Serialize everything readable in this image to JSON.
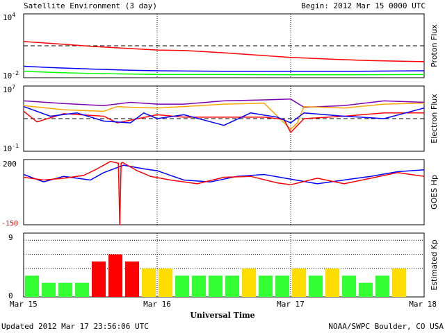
{
  "header": {
    "title": "Satellite Environment (3 day)",
    "begin": "Begin:  2012 Mar 15 0000 UTC"
  },
  "footer": {
    "updated": "Updated 2012 Mar 17 23:56:06 UTC",
    "credit": "NOAA/SWPC Boulder, CO USA"
  },
  "x_axis": {
    "label": "Universal Time",
    "ticks": [
      "Mar 15",
      "Mar 16",
      "Mar 17",
      "Mar 18"
    ],
    "range_days": [
      0,
      3
    ]
  },
  "colors": {
    "red": "#ff0000",
    "blue": "#0000ff",
    "green": "#00ff00",
    "orange": "#ffa500",
    "purple": "#7a00b0",
    "kp_low": "#33ff33",
    "kp_mid": "#ffdd00",
    "kp_high": "#ff0000"
  },
  "chart_data": [
    {
      "type": "line",
      "ylabel": "Proton Flux",
      "y_scale": "log",
      "ylim": [
        0.01,
        10000
      ],
      "y_tick_labels": {
        "top_base": "10",
        "top_exp": "4",
        "bottom_base": "10",
        "bottom_exp": "-2"
      },
      "threshold": 10,
      "series": [
        {
          "color": "#ff0000",
          "x": [
            0,
            0.2,
            0.5,
            0.8,
            1.0,
            1.2,
            1.5,
            1.8,
            2.0,
            2.3,
            2.6,
            3.0
          ],
          "y": [
            25,
            17,
            9,
            5.5,
            4,
            3.6,
            2.2,
            1.2,
            0.8,
            0.55,
            0.4,
            0.32
          ]
        },
        {
          "color": "#0000ff",
          "x": [
            0,
            0.2,
            0.5,
            0.8,
            1.0,
            1.5,
            2.0,
            2.5,
            3.0
          ],
          "y": [
            0.12,
            0.09,
            0.065,
            0.05,
            0.045,
            0.04,
            0.04,
            0.04,
            0.045
          ]
        },
        {
          "color": "#00ff00",
          "x": [
            0,
            0.2,
            0.5,
            0.8,
            1.0,
            1.5,
            2.0,
            2.5,
            3.0
          ],
          "y": [
            0.04,
            0.032,
            0.025,
            0.022,
            0.02,
            0.02,
            0.019,
            0.019,
            0.02
          ]
        }
      ]
    },
    {
      "type": "line",
      "ylabel": "Electron Flux",
      "y_scale": "log",
      "ylim": [
        0.1,
        10000000
      ],
      "y_tick_labels": {
        "top_base": "10",
        "top_exp": "7",
        "bottom_base": "10",
        "bottom_exp": "-1"
      },
      "threshold": 1000,
      "series": [
        {
          "color": "#7a00b0",
          "x": [
            0,
            0.3,
            0.6,
            0.8,
            1.0,
            1.2,
            1.5,
            1.8,
            2.0,
            2.1,
            2.4,
            2.7,
            3.0
          ],
          "y": [
            150000,
            70000,
            40000,
            100000,
            60000,
            60000,
            150000,
            200000,
            250000,
            25000,
            40000,
            150000,
            100000
          ]
        },
        {
          "color": "#ffa500",
          "x": [
            0,
            0.3,
            0.6,
            0.7,
            0.8,
            1.0,
            1.2,
            1.5,
            1.8,
            2.0,
            2.05,
            2.1,
            2.4,
            2.7,
            3.0
          ],
          "y": [
            40000,
            12000,
            8000,
            30000,
            25000,
            20000,
            30000,
            60000,
            80000,
            50,
            300,
            30000,
            20000,
            60000,
            80000
          ]
        },
        {
          "color": "#ff0000",
          "x": [
            0,
            0.1,
            0.3,
            0.6,
            0.7,
            1.0,
            1.2,
            1.5,
            1.8,
            1.95,
            2.0,
            2.1,
            2.4,
            2.7,
            3.0
          ],
          "y": [
            8000,
            400,
            4000,
            2000,
            300,
            3000,
            1500,
            1500,
            1500,
            800,
            20,
            1000,
            2000,
            5000,
            5000
          ]
        },
        {
          "color": "#0000ff",
          "x": [
            0,
            0.2,
            0.4,
            0.6,
            0.8,
            0.9,
            1.0,
            1.2,
            1.5,
            1.7,
            1.9,
            2.0,
            2.1,
            2.4,
            2.7,
            3.0
          ],
          "y": [
            30000,
            2000,
            5000,
            500,
            300,
            5000,
            1000,
            3000,
            150,
            5000,
            1500,
            300,
            5000,
            2000,
            1000,
            20000
          ]
        }
      ]
    },
    {
      "type": "line",
      "ylabel": "GOES Hp",
      "ylim": [
        -150,
        200
      ],
      "y_tick_labels": {
        "top": "200",
        "bottom": "-150"
      },
      "series": [
        {
          "color": "#0000ff",
          "x": [
            0,
            0.15,
            0.3,
            0.5,
            0.6,
            0.75,
            0.9,
            1.0,
            1.2,
            1.4,
            1.6,
            1.8,
            2.0,
            2.2,
            2.4,
            2.6,
            2.8,
            3.0
          ],
          "y": [
            120,
            80,
            110,
            90,
            130,
            170,
            150,
            140,
            90,
            80,
            110,
            120,
            95,
            70,
            90,
            110,
            135,
            145
          ]
        },
        {
          "color": "#ff0000",
          "x": [
            0,
            0.15,
            0.3,
            0.45,
            0.55,
            0.65,
            0.71,
            0.72,
            0.73,
            0.74,
            0.85,
            0.95,
            1.1,
            1.3,
            1.5,
            1.7,
            1.9,
            2.0,
            2.2,
            2.4,
            2.6,
            2.8,
            3.0
          ],
          "y": [
            105,
            90,
            100,
            115,
            150,
            190,
            180,
            -150,
            180,
            185,
            140,
            110,
            90,
            70,
            105,
            110,
            75,
            65,
            100,
            70,
            100,
            130,
            110
          ]
        }
      ]
    },
    {
      "type": "bar",
      "ylabel": "Estimated Kp",
      "ylim": [
        0,
        9
      ],
      "y_tick_labels": {
        "top": "9",
        "bottom": "0"
      },
      "x_start": 0,
      "bar_width_days": 0.125,
      "values": [
        3,
        2,
        2,
        2,
        5,
        6,
        5,
        4,
        4,
        3,
        3,
        3,
        3,
        4,
        3,
        3,
        4,
        3,
        4,
        3,
        2,
        3,
        4,
        0
      ],
      "gridlines": [
        4,
        6,
        8
      ]
    }
  ]
}
